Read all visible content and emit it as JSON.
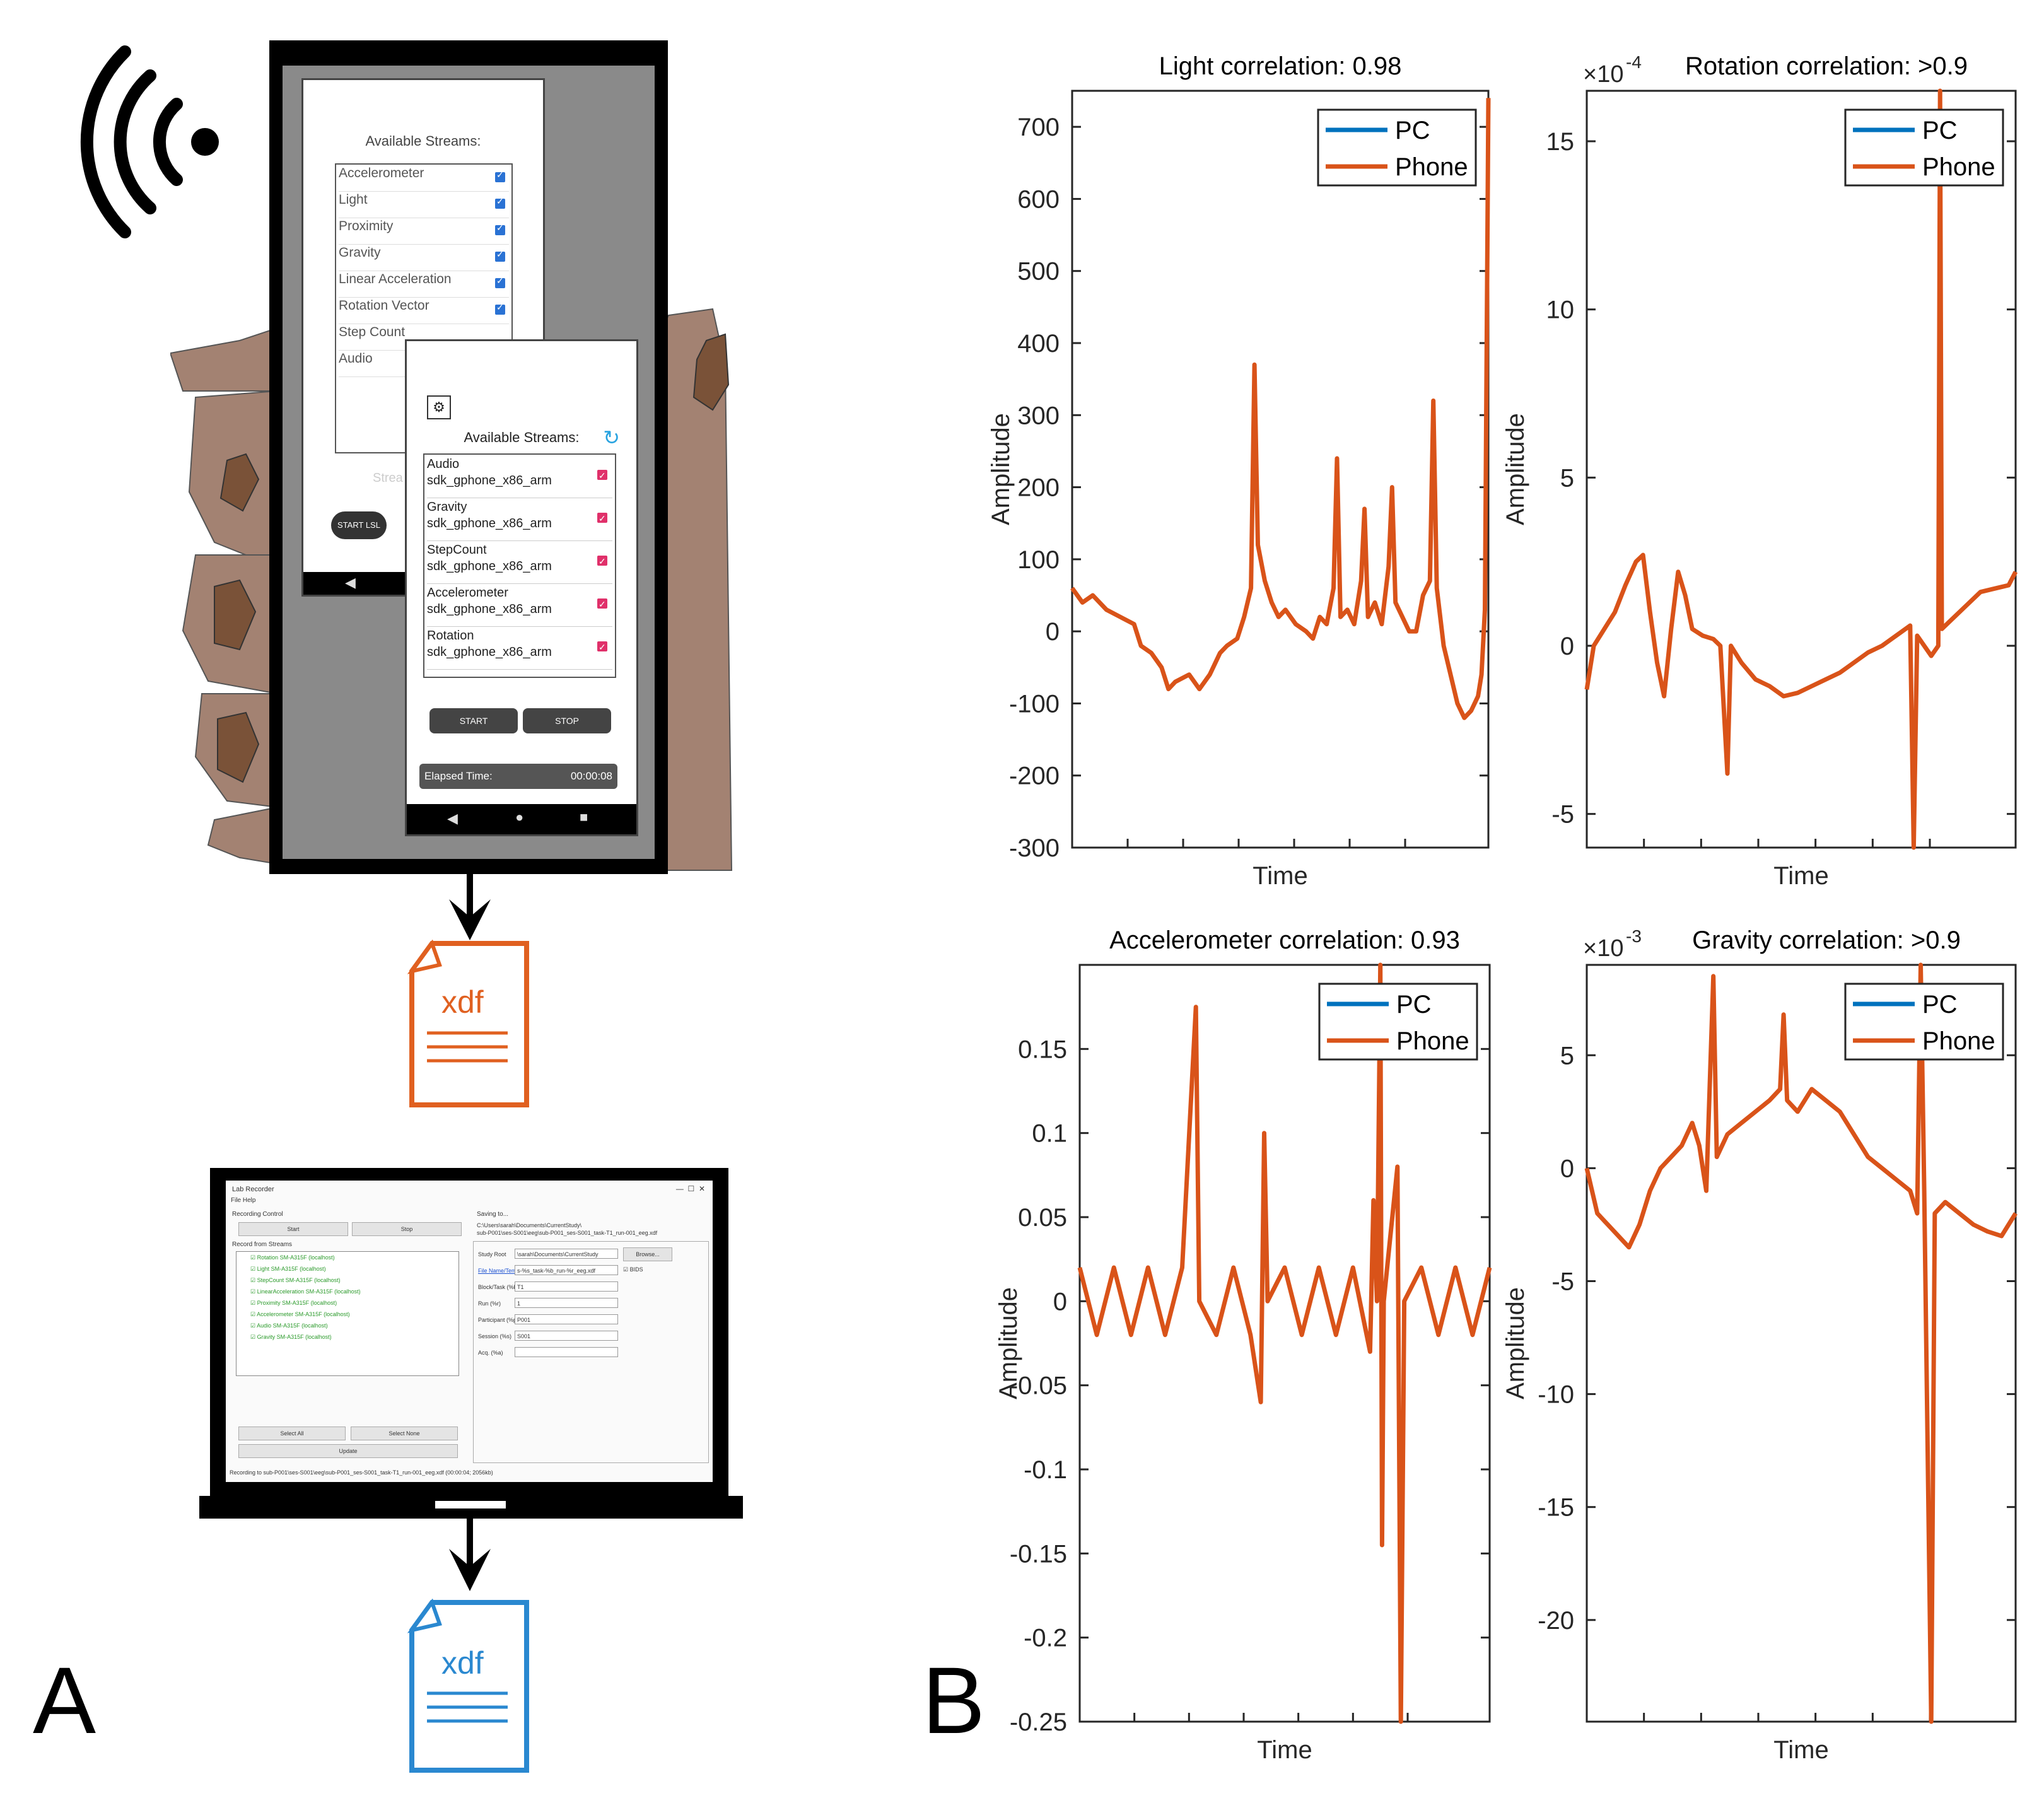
{
  "panels": {
    "left": "A",
    "right": "B"
  },
  "icons": {
    "wireless": "wireless-signal-icon",
    "phone_file": "xdf-file-icon",
    "pc_file": "xdf-file-icon"
  },
  "colors": {
    "pc": "#0072BD",
    "phone": "#D95319",
    "phone_file": "#E06020",
    "pc_file": "#2A88D0",
    "skin": "#A38272"
  },
  "phone": {
    "screen1": {
      "title": "Available Streams:",
      "streams": [
        "Accelerometer",
        "Light",
        "Proximity",
        "Gravity",
        "Linear Acceleration",
        "Rotation Vector",
        "Step Count",
        "Audio"
      ],
      "partial_label": "Strea",
      "start_button": "START LSL"
    },
    "screen2": {
      "title": "Available Streams:",
      "streams": [
        {
          "name": "Audio",
          "device": "sdk_gphone_x86_arm"
        },
        {
          "name": "Gravity",
          "device": "sdk_gphone_x86_arm"
        },
        {
          "name": "StepCount",
          "device": "sdk_gphone_x86_arm"
        },
        {
          "name": "Accelerometer",
          "device": "sdk_gphone_x86_arm"
        },
        {
          "name": "Rotation",
          "device": "sdk_gphone_x86_arm"
        }
      ],
      "start_button": "START",
      "stop_button": "STOP",
      "elapsed_label": "Elapsed Time:",
      "elapsed_value": "00:00:08"
    }
  },
  "files": {
    "phone_label": "xdf",
    "pc_label": "xdf"
  },
  "lab_recorder": {
    "title": "Lab Recorder",
    "menu": "File   Help",
    "recording_control": "Recording Control",
    "start": "Start",
    "stop": "Stop",
    "record_from_streams": "Record from Streams",
    "streams": [
      "Rotation SM-A315F (localhost)",
      "Light SM-A315F (localhost)",
      "StepCount SM-A315F (localhost)",
      "LinearAcceleration SM-A315F (localhost)",
      "Proximity SM-A315F (localhost)",
      "Accelerometer SM-A315F (localhost)",
      "Audio SM-A315F (localhost)",
      "Gravity SM-A315F (localhost)"
    ],
    "select_all": "Select All",
    "select_none": "Select None",
    "update": "Update",
    "saving_to": "Saving to...",
    "saving_path_1": "C:\\Users\\sarah\\Documents\\CurrentStudy\\",
    "saving_path_2": "sub-P001\\ses-S001\\eeg\\sub-P001_ses-S001_task-T1_run-001_eeg.xdf",
    "study_root_label": "Study Root",
    "study_root_value": "\\sarah\\Documents\\CurrentStudy",
    "browse": "Browse...",
    "template_label": "File Name/Template",
    "template_value": "s-%s_task-%b_run-%r_eeg.xdf",
    "bids": "BIDS",
    "block_label": "Block/Task (%b):",
    "block_value": "T1",
    "run_label": "Run (%r)",
    "run_value": "1",
    "participant_label": "Participant (%p)",
    "participant_value": "P001",
    "session_label": "Session (%s)",
    "session_value": "S001",
    "acq_label": "Acq. (%a)",
    "acq_value": "",
    "status": "Recording to sub-P001\\ses-S001\\eeg\\sub-P001_ses-S001_task-T1_run-001_eeg.xdf (00:00:04; 2056kb)"
  },
  "chart_data": [
    {
      "type": "line",
      "title": "Light correlation: 0.98",
      "xlabel": "Time",
      "ylabel": "Amplitude",
      "ylim": [
        -300,
        750
      ],
      "yticks": [
        "-300",
        "-200",
        "-100",
        "0",
        "100",
        "200",
        "300",
        "400",
        "500",
        "600",
        "700"
      ],
      "exponent": "",
      "legend": [
        "PC",
        "Phone"
      ],
      "legend_position": "top-right",
      "series": [
        {
          "name": "PC",
          "points": []
        },
        {
          "name": "Phone",
          "points": [
            [
              0,
              60
            ],
            [
              3,
              40
            ],
            [
              6,
              50
            ],
            [
              10,
              30
            ],
            [
              14,
              20
            ],
            [
              18,
              10
            ],
            [
              20,
              -20
            ],
            [
              23,
              -30
            ],
            [
              26,
              -50
            ],
            [
              28,
              -80
            ],
            [
              30,
              -70
            ],
            [
              34,
              -60
            ],
            [
              37,
              -80
            ],
            [
              40,
              -60
            ],
            [
              43,
              -30
            ],
            [
              45,
              -20
            ],
            [
              48,
              -10
            ],
            [
              50,
              20
            ],
            [
              52,
              60
            ],
            [
              53,
              370
            ],
            [
              54,
              120
            ],
            [
              56,
              70
            ],
            [
              58,
              40
            ],
            [
              60,
              20
            ],
            [
              62,
              30
            ],
            [
              65,
              10
            ],
            [
              68,
              0
            ],
            [
              70,
              -10
            ],
            [
              72,
              20
            ],
            [
              74,
              10
            ],
            [
              76,
              60
            ],
            [
              77,
              240
            ],
            [
              78,
              20
            ],
            [
              80,
              30
            ],
            [
              82,
              10
            ],
            [
              84,
              70
            ],
            [
              85,
              170
            ],
            [
              86,
              20
            ],
            [
              88,
              40
            ],
            [
              90,
              10
            ],
            [
              92,
              90
            ],
            [
              93,
              200
            ],
            [
              94,
              40
            ],
            [
              96,
              20
            ],
            [
              98,
              0
            ],
            [
              100,
              0
            ],
            [
              102,
              50
            ],
            [
              104,
              70
            ],
            [
              105,
              320
            ],
            [
              106,
              60
            ],
            [
              108,
              -20
            ],
            [
              110,
              -60
            ],
            [
              112,
              -100
            ],
            [
              114,
              -120
            ],
            [
              116,
              -110
            ],
            [
              118,
              -90
            ],
            [
              119,
              -60
            ],
            [
              120,
              30
            ],
            [
              121,
              740
            ]
          ]
        }
      ]
    },
    {
      "type": "line",
      "title": "Rotation correlation: >0.9",
      "xlabel": "Time",
      "ylabel": "Amplitude",
      "ylim": [
        -6,
        16.5
      ],
      "yticks": [
        "-5",
        "0",
        "5",
        "10",
        "15"
      ],
      "exponent": "-4",
      "legend": [
        "PC",
        "Phone"
      ],
      "legend_position": "top-right",
      "series": [
        {
          "name": "PC",
          "points": []
        },
        {
          "name": "Phone",
          "points": [
            [
              0,
              -1.3
            ],
            [
              2,
              0
            ],
            [
              5,
              0.5
            ],
            [
              8,
              1
            ],
            [
              11,
              1.8
            ],
            [
              14,
              2.5
            ],
            [
              16,
              2.7
            ],
            [
              18,
              1
            ],
            [
              20,
              -0.5
            ],
            [
              22,
              -1.5
            ],
            [
              24,
              0.5
            ],
            [
              26,
              2.2
            ],
            [
              28,
              1.5
            ],
            [
              30,
              0.5
            ],
            [
              33,
              0.3
            ],
            [
              36,
              0.2
            ],
            [
              38,
              0
            ],
            [
              40,
              -3.8
            ],
            [
              41,
              0
            ],
            [
              44,
              -0.5
            ],
            [
              48,
              -1
            ],
            [
              52,
              -1.2
            ],
            [
              56,
              -1.5
            ],
            [
              60,
              -1.4
            ],
            [
              64,
              -1.2
            ],
            [
              68,
              -1
            ],
            [
              72,
              -0.8
            ],
            [
              76,
              -0.5
            ],
            [
              80,
              -0.2
            ],
            [
              84,
              0
            ],
            [
              88,
              0.3
            ],
            [
              92,
              0.6
            ],
            [
              93,
              -6
            ],
            [
              94,
              0.3
            ],
            [
              98,
              -0.3
            ],
            [
              100,
              0
            ],
            [
              100.5,
              16.5
            ],
            [
              101,
              0.5
            ],
            [
              104,
              0.8
            ],
            [
              108,
              1.2
            ],
            [
              112,
              1.6
            ],
            [
              116,
              1.7
            ],
            [
              120,
              1.8
            ],
            [
              122,
              2.2
            ]
          ]
        }
      ]
    },
    {
      "type": "line",
      "title": "Accelerometer correlation: 0.93",
      "xlabel": "Time",
      "ylabel": "Amplitude",
      "ylim": [
        -0.25,
        0.2
      ],
      "yticks": [
        "-0.25",
        "-0.2",
        "-0.15",
        "-0.1",
        "-0.05",
        "0",
        "0.05",
        "0.1",
        "0.15"
      ],
      "exponent": "",
      "legend": [
        "PC",
        "Phone"
      ],
      "legend_position": "top-right",
      "series": [
        {
          "name": "PC",
          "points": []
        },
        {
          "name": "Phone",
          "points": [
            [
              0,
              0.02
            ],
            [
              5,
              -0.02
            ],
            [
              10,
              0.02
            ],
            [
              15,
              -0.02
            ],
            [
              20,
              0.02
            ],
            [
              25,
              -0.02
            ],
            [
              30,
              0.02
            ],
            [
              34,
              0.175
            ],
            [
              35,
              0
            ],
            [
              40,
              -0.02
            ],
            [
              45,
              0.02
            ],
            [
              50,
              -0.02
            ],
            [
              53,
              -0.06
            ],
            [
              54,
              0.1
            ],
            [
              55,
              0
            ],
            [
              60,
              0.02
            ],
            [
              65,
              -0.02
            ],
            [
              70,
              0.02
            ],
            [
              75,
              -0.02
            ],
            [
              80,
              0.02
            ],
            [
              85,
              -0.03
            ],
            [
              86,
              0.06
            ],
            [
              87,
              0
            ],
            [
              88,
              0.2
            ],
            [
              88.5,
              -0.145
            ],
            [
              89,
              0
            ],
            [
              90,
              0.02
            ],
            [
              93,
              0.08
            ],
            [
              94,
              -0.25
            ],
            [
              95,
              0
            ],
            [
              100,
              0.02
            ],
            [
              105,
              -0.02
            ],
            [
              110,
              0.02
            ],
            [
              115,
              -0.02
            ],
            [
              120,
              0.02
            ]
          ]
        }
      ]
    },
    {
      "type": "line",
      "title": "Gravity correlation: >0.9",
      "xlabel": "Time",
      "ylabel": "Amplitude",
      "ylim": [
        -24.5,
        9
      ],
      "yticks": [
        "-20",
        "-15",
        "-10",
        "-5",
        "0",
        "5"
      ],
      "exponent": "-3",
      "legend": [
        "PC",
        "Phone"
      ],
      "legend_position": "top-right",
      "series": [
        {
          "name": "PC",
          "points": []
        },
        {
          "name": "Phone",
          "points": [
            [
              0,
              0
            ],
            [
              3,
              -2
            ],
            [
              6,
              -2.5
            ],
            [
              9,
              -3
            ],
            [
              12,
              -3.5
            ],
            [
              15,
              -2.5
            ],
            [
              18,
              -1
            ],
            [
              21,
              0
            ],
            [
              24,
              0.5
            ],
            [
              27,
              1
            ],
            [
              30,
              2
            ],
            [
              32,
              1
            ],
            [
              34,
              -1
            ],
            [
              36,
              8.5
            ],
            [
              37,
              0.5
            ],
            [
              40,
              1.5
            ],
            [
              44,
              2
            ],
            [
              48,
              2.5
            ],
            [
              52,
              3
            ],
            [
              55,
              3.5
            ],
            [
              56,
              6.8
            ],
            [
              57,
              3
            ],
            [
              60,
              2.5
            ],
            [
              64,
              3.5
            ],
            [
              68,
              3
            ],
            [
              72,
              2.5
            ],
            [
              76,
              1.5
            ],
            [
              80,
              0.5
            ],
            [
              84,
              0
            ],
            [
              88,
              -0.5
            ],
            [
              92,
              -1
            ],
            [
              94,
              -2
            ],
            [
              95,
              9
            ],
            [
              96,
              -1
            ],
            [
              98,
              -24.5
            ],
            [
              99,
              -2
            ],
            [
              102,
              -1.5
            ],
            [
              106,
              -2
            ],
            [
              110,
              -2.5
            ],
            [
              114,
              -2.8
            ],
            [
              118,
              -3
            ],
            [
              122,
              -2
            ]
          ]
        }
      ]
    }
  ]
}
